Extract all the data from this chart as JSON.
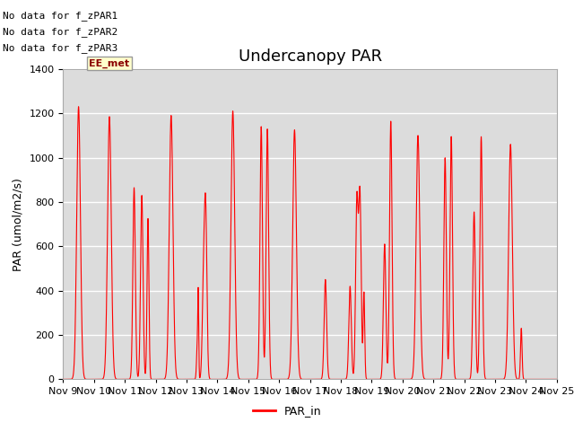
{
  "title": "Undercanopy PAR",
  "ylabel": "PAR (umol/m2/s)",
  "ylim": [
    0,
    1400
  ],
  "yticks": [
    0,
    200,
    400,
    600,
    800,
    1000,
    1200,
    1400
  ],
  "line_color": "#FF0000",
  "bg_color": "#DCDCDC",
  "fig_bg": "#FFFFFF",
  "legend_label": "PAR_in",
  "no_data_labels": [
    "No data for f_zPAR1",
    "No data for f_zPAR2",
    "No data for f_zPAR3"
  ],
  "ee_met_label": "EE_met",
  "note_fontsize": 8,
  "title_fontsize": 13,
  "axis_fontsize": 9,
  "tick_fontsize": 8,
  "n_days": 16,
  "start_day": 9,
  "points_per_day": 288
}
